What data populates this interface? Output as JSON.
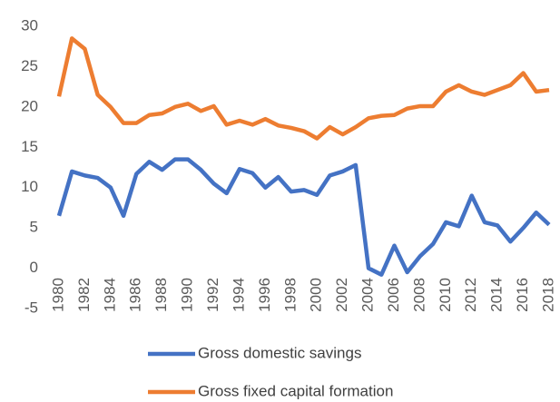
{
  "chart_data": {
    "type": "line",
    "x": [
      1980,
      1981,
      1982,
      1983,
      1984,
      1985,
      1986,
      1987,
      1988,
      1989,
      1990,
      1991,
      1992,
      1993,
      1994,
      1995,
      1996,
      1997,
      1998,
      1999,
      2000,
      2001,
      2002,
      2003,
      2004,
      2005,
      2006,
      2007,
      2008,
      2009,
      2010,
      2011,
      2012,
      2013,
      2014,
      2015,
      2016,
      2017,
      2018
    ],
    "xlim": [
      1980,
      2018
    ],
    "xticks": [
      1980,
      1982,
      1984,
      1986,
      1988,
      1990,
      1992,
      1994,
      1996,
      1998,
      2000,
      2002,
      2004,
      2006,
      2008,
      2010,
      2012,
      2014,
      2016,
      2018
    ],
    "ylim": [
      -5,
      30
    ],
    "yticks": [
      -5,
      0,
      5,
      10,
      15,
      20,
      25,
      30
    ],
    "grid": false,
    "legend": "bottom",
    "series": [
      {
        "name": "Gross domestic savings",
        "color": "#4472c4",
        "values": [
          6.5,
          12,
          11.5,
          11.2,
          10,
          6.5,
          11.7,
          13.2,
          12.2,
          13.5,
          13.5,
          12.2,
          10.5,
          9.3,
          12.3,
          11.8,
          10,
          11.3,
          9.5,
          9.7,
          9.1,
          11.5,
          12,
          12.8,
          0,
          -0.8,
          2.8,
          -0.5,
          1.5,
          3,
          5.7,
          5.2,
          9,
          5.7,
          5.3,
          3.3,
          5,
          6.9,
          5.4
        ]
      },
      {
        "name": "Gross fixed capital formation",
        "color": "#ed7d31",
        "values": [
          21.3,
          28.5,
          27.2,
          21.5,
          20,
          18,
          18,
          19,
          19.2,
          20,
          20.4,
          19.5,
          20.1,
          17.8,
          18.3,
          17.8,
          18.5,
          17.7,
          17.4,
          17,
          16.1,
          17.5,
          16.6,
          17.5,
          18.6,
          18.9,
          19,
          19.8,
          20.1,
          20.1,
          21.9,
          22.7,
          21.9,
          21.5,
          22.1,
          22.7,
          24.2,
          21.9,
          22.1
        ]
      }
    ]
  }
}
